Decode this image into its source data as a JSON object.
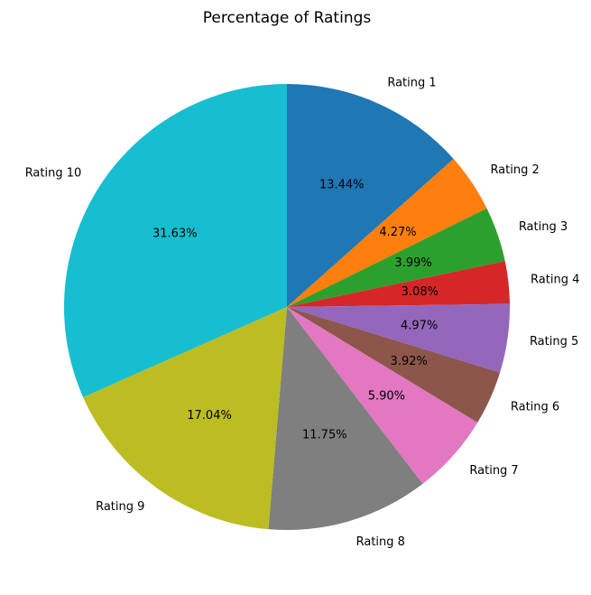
{
  "chart_data": {
    "type": "pie",
    "title": "Percentage of Ratings",
    "labels": [
      "Rating 1",
      "Rating 2",
      "Rating 3",
      "Rating 4",
      "Rating 5",
      "Rating 6",
      "Rating 7",
      "Rating 8",
      "Rating 9",
      "Rating 10"
    ],
    "values": [
      13.44,
      4.27,
      3.99,
      3.08,
      4.97,
      3.92,
      5.9,
      11.75,
      17.04,
      31.63
    ],
    "value_labels": [
      "13.44%",
      "4.27%",
      "3.99%",
      "3.08%",
      "4.97%",
      "3.92%",
      "5.90%",
      "11.75%",
      "17.04%",
      "31.63%"
    ],
    "colors": [
      "#1f77b4",
      "#ff7f0e",
      "#2ca02c",
      "#d62728",
      "#9467bd",
      "#8c564b",
      "#e377c2",
      "#7f7f7f",
      "#bcbd22",
      "#17becf"
    ],
    "start_angle_deg": 90,
    "direction": "clockwise"
  }
}
